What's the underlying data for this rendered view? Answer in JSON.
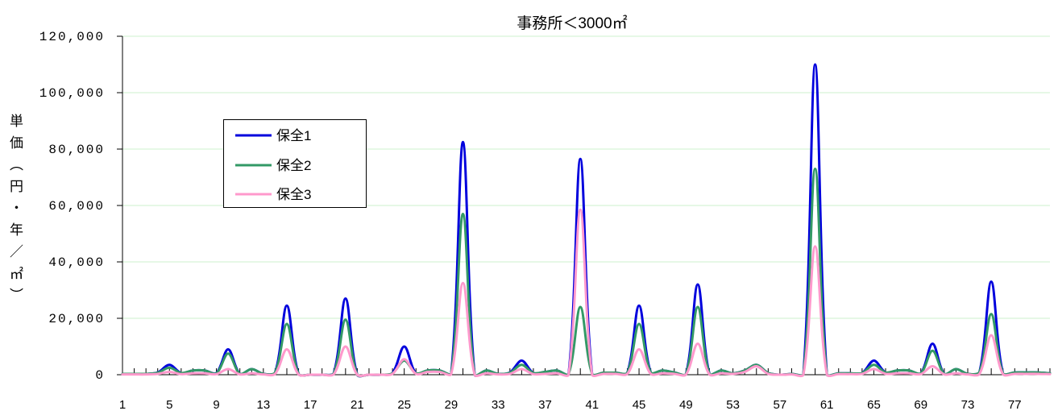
{
  "chart_data": {
    "type": "line",
    "title": "事務所＜3000㎡",
    "xlabel": "",
    "ylabel": "単価（円・年／㎡）",
    "ylim": [
      0,
      120000
    ],
    "y_ticks": [
      0,
      20000,
      40000,
      60000,
      80000,
      100000,
      120000
    ],
    "y_tick_labels": [
      "0",
      "20,000",
      "40,000",
      "60,000",
      "80,000",
      "100,000",
      "120,000"
    ],
    "categories": [
      1,
      2,
      3,
      4,
      5,
      6,
      7,
      8,
      9,
      10,
      11,
      12,
      13,
      14,
      15,
      16,
      17,
      18,
      19,
      20,
      21,
      22,
      23,
      24,
      25,
      26,
      27,
      28,
      29,
      30,
      31,
      32,
      33,
      34,
      35,
      36,
      37,
      38,
      39,
      40,
      41,
      42,
      43,
      44,
      45,
      46,
      47,
      48,
      49,
      50,
      51,
      52,
      53,
      54,
      55,
      56,
      57,
      58,
      59,
      60,
      61,
      62,
      63,
      64,
      65,
      66,
      67,
      68,
      69,
      70,
      71,
      72,
      73,
      74,
      75,
      76,
      77,
      78,
      79,
      80
    ],
    "x_tick_labels": [
      "1",
      "5",
      "9",
      "13",
      "17",
      "21",
      "25",
      "29",
      "33",
      "37",
      "41",
      "45",
      "49",
      "53",
      "57",
      "61",
      "65",
      "69",
      "73",
      "77"
    ],
    "grid": true,
    "smooth": true,
    "legend_position": "upper-left",
    "gridline_color": "#ccf2cc",
    "series": [
      {
        "name": "保全1",
        "color": "#0000dd",
        "values": [
          300,
          300,
          300,
          800,
          3500,
          600,
          1500,
          1500,
          600,
          9000,
          300,
          2000,
          300,
          800,
          24500,
          300,
          0,
          0,
          600,
          27000,
          0,
          0,
          0,
          600,
          10000,
          500,
          1500,
          1500,
          500,
          82500,
          0,
          1500,
          300,
          800,
          5000,
          600,
          1000,
          1500,
          300,
          76500,
          300,
          700,
          700,
          700,
          24500,
          800,
          1500,
          800,
          300,
          32000,
          300,
          1500,
          500,
          1500,
          3500,
          600,
          0,
          300,
          300,
          110000,
          200,
          500,
          500,
          600,
          5000,
          800,
          1500,
          1500,
          500,
          11000,
          300,
          2000,
          300,
          1000,
          33000,
          500,
          800,
          800,
          800,
          500
        ]
      },
      {
        "name": "保全2",
        "color": "#339966",
        "values": [
          300,
          300,
          300,
          700,
          2500,
          600,
          1500,
          1500,
          500,
          7500,
          300,
          2000,
          300,
          800,
          18000,
          300,
          0,
          0,
          500,
          19500,
          0,
          0,
          0,
          500,
          5000,
          500,
          1500,
          1500,
          500,
          57000,
          0,
          1500,
          300,
          700,
          3500,
          600,
          1000,
          1500,
          300,
          24000,
          300,
          700,
          700,
          700,
          18000,
          800,
          1500,
          800,
          300,
          24000,
          300,
          1500,
          500,
          1500,
          3500,
          600,
          0,
          300,
          300,
          73000,
          200,
          500,
          500,
          600,
          3500,
          800,
          1500,
          1500,
          500,
          8500,
          300,
          2000,
          300,
          1000,
          21500,
          500,
          800,
          800,
          800,
          500
        ]
      },
      {
        "name": "保全3",
        "color": "#ff99cc",
        "values": [
          100,
          100,
          100,
          300,
          1000,
          200,
          500,
          500,
          200,
          2000,
          100,
          500,
          100,
          300,
          9000,
          100,
          0,
          0,
          200,
          10000,
          0,
          0,
          0,
          300,
          5500,
          300,
          1000,
          1000,
          300,
          32500,
          0,
          500,
          100,
          300,
          2000,
          200,
          300,
          500,
          100,
          58500,
          100,
          300,
          300,
          300,
          9000,
          300,
          500,
          300,
          100,
          11000,
          100,
          500,
          300,
          1000,
          3000,
          300,
          0,
          100,
          100,
          45500,
          100,
          200,
          200,
          300,
          2000,
          300,
          500,
          500,
          200,
          3000,
          100,
          500,
          100,
          300,
          14000,
          200,
          300,
          300,
          300,
          200
        ]
      }
    ]
  }
}
